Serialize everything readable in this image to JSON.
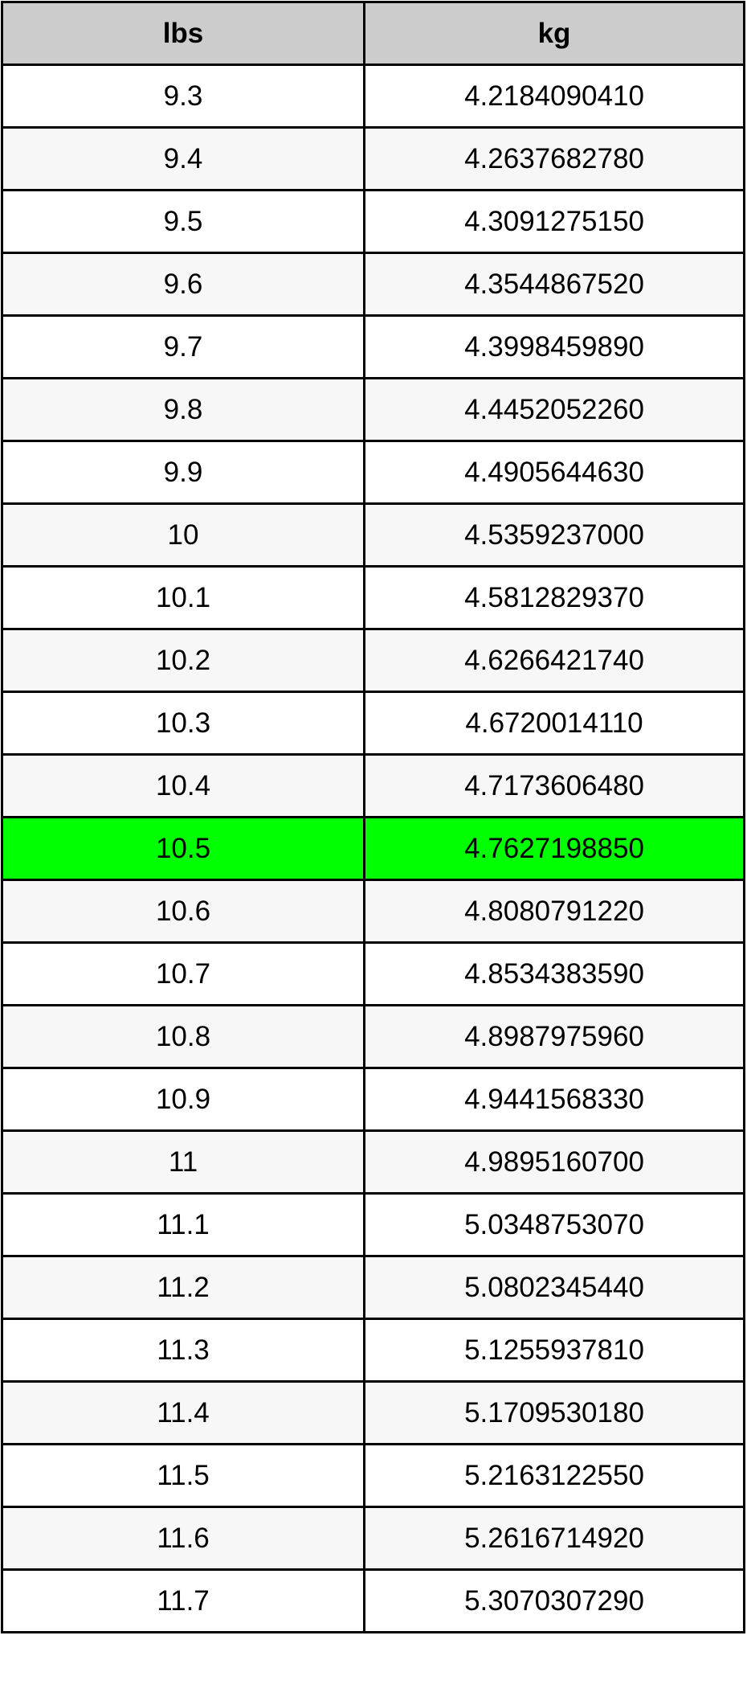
{
  "table": {
    "headers": [
      "lbs",
      "kg"
    ],
    "highlight_color": "#00ff00",
    "highlighted_row": "10.5",
    "rows": [
      [
        "9.3",
        "4.2184090410"
      ],
      [
        "9.4",
        "4.2637682780"
      ],
      [
        "9.5",
        "4.3091275150"
      ],
      [
        "9.6",
        "4.3544867520"
      ],
      [
        "9.7",
        "4.3998459890"
      ],
      [
        "9.8",
        "4.4452052260"
      ],
      [
        "9.9",
        "4.4905644630"
      ],
      [
        "10",
        "4.5359237000"
      ],
      [
        "10.1",
        "4.5812829370"
      ],
      [
        "10.2",
        "4.6266421740"
      ],
      [
        "10.3",
        "4.6720014110"
      ],
      [
        "10.4",
        "4.7173606480"
      ],
      [
        "10.5",
        "4.7627198850"
      ],
      [
        "10.6",
        "4.8080791220"
      ],
      [
        "10.7",
        "4.8534383590"
      ],
      [
        "10.8",
        "4.8987975960"
      ],
      [
        "10.9",
        "4.9441568330"
      ],
      [
        "11",
        "4.9895160700"
      ],
      [
        "11.1",
        "5.0348753070"
      ],
      [
        "11.2",
        "5.0802345440"
      ],
      [
        "11.3",
        "5.1255937810"
      ],
      [
        "11.4",
        "5.1709530180"
      ],
      [
        "11.5",
        "5.2163122550"
      ],
      [
        "11.6",
        "5.2616714920"
      ],
      [
        "11.7",
        "5.3070307290"
      ]
    ]
  }
}
